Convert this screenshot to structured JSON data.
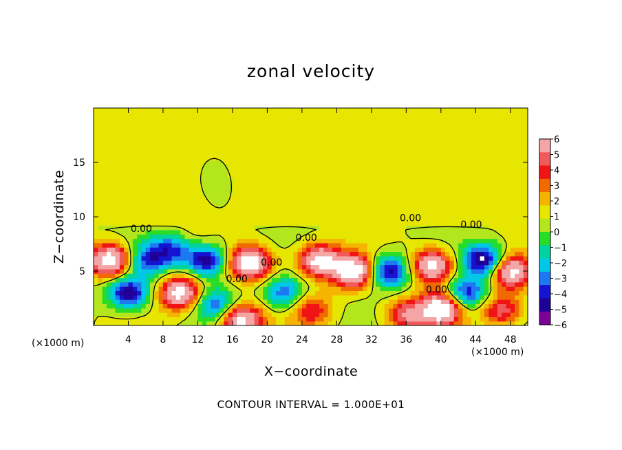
{
  "chart_data": {
    "type": "heatmap",
    "title": "zonal velocity",
    "xlabel": "X−coordinate",
    "ylabel": "Z−coordinate",
    "x_unit": "(×1000 m)",
    "y_unit": "(×1000 m)",
    "xlim": [
      0,
      50
    ],
    "ylim": [
      0,
      20
    ],
    "x_ticks": [
      4,
      8,
      12,
      16,
      20,
      24,
      28,
      32,
      36,
      40,
      44,
      48
    ],
    "y_ticks": [
      5,
      10,
      15
    ],
    "colorbar": {
      "ticks": [
        6,
        5,
        4,
        3,
        2,
        1,
        0,
        -1,
        -2,
        -3,
        -4,
        -5,
        -6
      ],
      "tick_labels": [
        "6",
        "5",
        "4",
        "3",
        "2",
        "1",
        "0",
        "−1",
        "−2",
        "−3",
        "−4",
        "−5",
        "−6"
      ],
      "colors": [
        "#f4a6a6",
        "#f05a5a",
        "#f01414",
        "#f06a00",
        "#f5b400",
        "#e6e600",
        "#b4e61e",
        "#28dc28",
        "#00d2a0",
        "#00c8e6",
        "#1e78f0",
        "#1414d2",
        "#1e0096",
        "#7a0096"
      ]
    },
    "contour_interval": "1.000E+01",
    "contour_labels": [
      "0.00",
      "0.00",
      "0.00",
      "0.00",
      "0.00",
      "0.00",
      "0.00"
    ],
    "features": [
      {
        "x": 2,
        "z": 6,
        "value": 9
      },
      {
        "x": 4,
        "z": 3,
        "value": -7
      },
      {
        "x": 6,
        "z": 6,
        "value": -5
      },
      {
        "x": 9,
        "z": 7,
        "value": -5
      },
      {
        "x": 10,
        "z": 3,
        "value": 8
      },
      {
        "x": 13,
        "z": 6,
        "value": -7
      },
      {
        "x": 14,
        "z": 12,
        "value": -2
      },
      {
        "x": 14,
        "z": 2,
        "value": -5
      },
      {
        "x": 18,
        "z": 5.8,
        "value": 9
      },
      {
        "x": 17,
        "z": 0.5,
        "value": 8
      },
      {
        "x": 22,
        "z": 3,
        "value": -5
      },
      {
        "x": 25,
        "z": 1.5,
        "value": 4
      },
      {
        "x": 26,
        "z": 6,
        "value": 8
      },
      {
        "x": 30,
        "z": 5,
        "value": 9
      },
      {
        "x": 34,
        "z": 5,
        "value": -7
      },
      {
        "x": 36,
        "z": 1,
        "value": 5
      },
      {
        "x": 39,
        "z": 5.5,
        "value": 8
      },
      {
        "x": 40,
        "z": 1.5,
        "value": 9
      },
      {
        "x": 43,
        "z": 3,
        "value": -6
      },
      {
        "x": 45,
        "z": 6,
        "value": -8
      },
      {
        "x": 48,
        "z": 5,
        "value": 8
      },
      {
        "x": 47,
        "z": 1.5,
        "value": 5
      },
      {
        "x": 12,
        "z": 9.5,
        "value": 1
      },
      {
        "x": 30,
        "z": 16,
        "value": 0.5
      }
    ]
  }
}
